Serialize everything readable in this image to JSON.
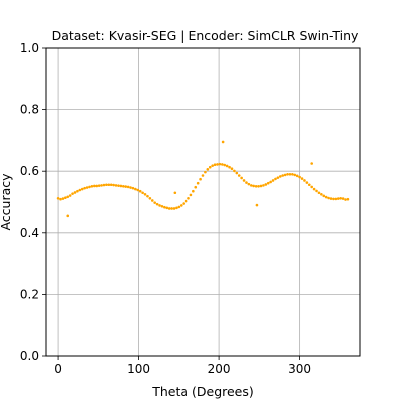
{
  "chart_data": {
    "type": "scatter",
    "title": "Dataset: Kvasir-SEG | Encoder: SimCLR Swin-Tiny",
    "xlabel": "Theta (Degrees)",
    "ylabel": "Accuracy",
    "xlim": [
      -15,
      375
    ],
    "ylim": [
      0.0,
      1.0
    ],
    "xticks": [
      0,
      100,
      200,
      300
    ],
    "yticks": [
      0.0,
      0.2,
      0.4,
      0.6,
      0.8,
      1.0
    ],
    "xtick_labels": [
      "0",
      "100",
      "200",
      "300"
    ],
    "ytick_labels": [
      "0.0",
      "0.2",
      "0.4",
      "0.6",
      "0.8",
      "1.0"
    ],
    "grid": true,
    "color": "#ffa500",
    "points": {
      "x": [
        0,
        3,
        6,
        9,
        12,
        15,
        18,
        21,
        24,
        27,
        30,
        33,
        36,
        39,
        42,
        45,
        48,
        51,
        54,
        57,
        60,
        63,
        66,
        69,
        72,
        75,
        78,
        81,
        84,
        87,
        90,
        93,
        96,
        99,
        102,
        105,
        108,
        111,
        114,
        117,
        120,
        123,
        126,
        129,
        132,
        135,
        138,
        141,
        144,
        147,
        150,
        153,
        156,
        159,
        162,
        165,
        168,
        171,
        174,
        177,
        180,
        183,
        186,
        189,
        192,
        195,
        198,
        201,
        204,
        207,
        210,
        213,
        216,
        219,
        222,
        225,
        228,
        231,
        234,
        237,
        240,
        243,
        246,
        249,
        252,
        255,
        258,
        261,
        264,
        267,
        270,
        273,
        276,
        279,
        282,
        285,
        288,
        291,
        294,
        297,
        300,
        303,
        306,
        309,
        312,
        315,
        318,
        321,
        324,
        327,
        330,
        333,
        336,
        339,
        342,
        345,
        348,
        351,
        354,
        357,
        360,
        12,
        145,
        205,
        247,
        315
      ],
      "y": [
        0.512,
        0.509,
        0.511,
        0.514,
        0.517,
        0.521,
        0.527,
        0.531,
        0.535,
        0.539,
        0.542,
        0.545,
        0.547,
        0.549,
        0.551,
        0.552,
        0.552,
        0.553,
        0.554,
        0.555,
        0.556,
        0.556,
        0.556,
        0.555,
        0.554,
        0.553,
        0.552,
        0.551,
        0.55,
        0.549,
        0.547,
        0.545,
        0.542,
        0.539,
        0.535,
        0.53,
        0.525,
        0.519,
        0.512,
        0.505,
        0.498,
        0.493,
        0.489,
        0.486,
        0.483,
        0.481,
        0.479,
        0.479,
        0.479,
        0.481,
        0.484,
        0.489,
        0.495,
        0.503,
        0.512,
        0.523,
        0.535,
        0.548,
        0.561,
        0.574,
        0.586,
        0.597,
        0.606,
        0.613,
        0.618,
        0.621,
        0.622,
        0.623,
        0.622,
        0.62,
        0.617,
        0.613,
        0.608,
        0.601,
        0.594,
        0.586,
        0.578,
        0.57,
        0.563,
        0.558,
        0.554,
        0.552,
        0.551,
        0.551,
        0.552,
        0.554,
        0.557,
        0.561,
        0.565,
        0.57,
        0.575,
        0.579,
        0.583,
        0.586,
        0.588,
        0.59,
        0.59,
        0.59,
        0.588,
        0.585,
        0.581,
        0.576,
        0.57,
        0.563,
        0.556,
        0.549,
        0.542,
        0.536,
        0.53,
        0.525,
        0.52,
        0.516,
        0.513,
        0.511,
        0.51,
        0.51,
        0.511,
        0.512,
        0.511,
        0.508,
        0.509,
        0.455,
        0.53,
        0.695,
        0.49,
        0.625
      ]
    }
  }
}
